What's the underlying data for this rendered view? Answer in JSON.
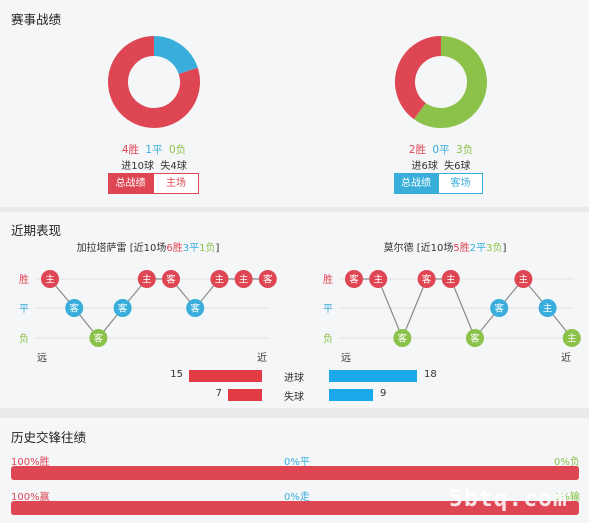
{
  "colors": {
    "win": "#de4654",
    "draw": "#3aaedb",
    "loss": "#8cc24a",
    "blue_bar": "#1ba8ea",
    "red_bar": "#e23b44"
  },
  "season": {
    "title": "赛事战绩",
    "home": {
      "w": 4,
      "d": 1,
      "l": 0,
      "win_text": "4胜",
      "draw_text": "1平",
      "loss_text": "0负",
      "goals": "进10球  失4球",
      "tab_total": "总战绩",
      "tab_venue": "主场"
    },
    "away": {
      "w": 2,
      "d": 0,
      "l": 3,
      "win_text": "2胜",
      "draw_text": "0平",
      "loss_text": "3负",
      "goals": "进6球  失6球",
      "tab_total": "总战绩",
      "tab_venue": "客场"
    }
  },
  "recent": {
    "title": "近期表现",
    "home": {
      "name": "加拉塔萨雷",
      "head": "[近10场",
      "w": "6胜",
      "d": "3平",
      "l": "1负",
      "tail": "]",
      "form": [
        {
          "r": "W",
          "v": "主"
        },
        {
          "r": "D",
          "v": "客"
        },
        {
          "r": "L",
          "v": "客"
        },
        {
          "r": "D",
          "v": "客"
        },
        {
          "r": "W",
          "v": "主"
        },
        {
          "r": "W",
          "v": "客"
        },
        {
          "r": "D",
          "v": "客"
        },
        {
          "r": "W",
          "v": "主"
        },
        {
          "r": "W",
          "v": "主"
        },
        {
          "r": "W",
          "v": "客"
        }
      ],
      "goals_for": 15,
      "goals_against": 7
    },
    "away": {
      "name": "莫尔德",
      "head": "[近10场",
      "w": "5胜",
      "d": "2平",
      "l": "3负",
      "tail": "]",
      "form": [
        {
          "r": "W",
          "v": "客"
        },
        {
          "r": "W",
          "v": "主"
        },
        {
          "r": "L",
          "v": "客"
        },
        {
          "r": "W",
          "v": "客"
        },
        {
          "r": "W",
          "v": "主"
        },
        {
          "r": "L",
          "v": "客"
        },
        {
          "r": "D",
          "v": "客"
        },
        {
          "r": "W",
          "v": "主"
        },
        {
          "r": "D",
          "v": "主"
        },
        {
          "r": "L",
          "v": "主"
        }
      ],
      "goals_for": 18,
      "goals_against": 9
    },
    "legend": {
      "win": "胜",
      "draw": "平",
      "loss": "负",
      "far": "远",
      "near": "近"
    },
    "scored_label": "进球",
    "conceded_label": "失球"
  },
  "h2h": {
    "title": "历史交锋往绩",
    "row1": {
      "left": "100%胜",
      "mid": "0%平",
      "right": "0%负",
      "win_pct": 100
    },
    "row2": {
      "left": "100%赢",
      "mid": "0%走",
      "right": "0%输",
      "win_pct": 100
    }
  },
  "watermark": "5btq.com"
}
